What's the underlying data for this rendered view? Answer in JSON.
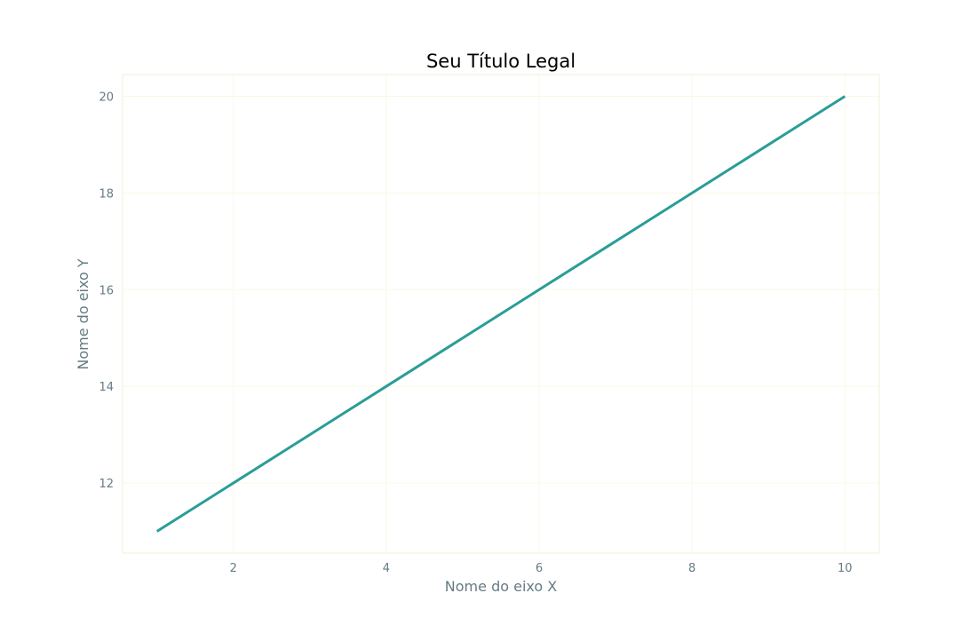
{
  "chart_data": {
    "type": "line",
    "title": "Seu Título Legal",
    "xlabel": "Nome do eixo X",
    "ylabel": "Nome do eixo Y",
    "xlim": [
      0.55,
      10.45
    ],
    "ylim": [
      10.55,
      20.45
    ],
    "x_ticks": [
      2,
      4,
      6,
      8,
      10
    ],
    "y_ticks": [
      12,
      14,
      16,
      18,
      20
    ],
    "grid": true,
    "series": [
      {
        "x": [
          1,
          2,
          3,
          4,
          5,
          6,
          7,
          8,
          9,
          10
        ],
        "y": [
          11,
          12,
          13,
          14,
          15,
          16,
          17,
          18,
          19,
          20
        ]
      }
    ],
    "colors": {
      "line": "#2a9d98",
      "grid": "#faf8e6",
      "frame": "#f1efd8",
      "text": "#657b83"
    }
  }
}
